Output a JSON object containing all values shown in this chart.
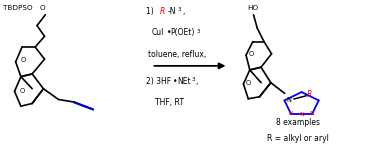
{
  "background_color": "#ffffff",
  "figsize": [
    3.78,
    1.45
  ],
  "dpi": 100,
  "bottom_text_line1": "8 examples",
  "bottom_text_line2": "R = alkyl or aryl",
  "tbdpso_label": "TBDPSO",
  "ho_label": "HO",
  "colors": {
    "red": "#ff0000",
    "blue": "#0000ff",
    "black": "#000000",
    "alkyne_blue": "#0000cc"
  }
}
